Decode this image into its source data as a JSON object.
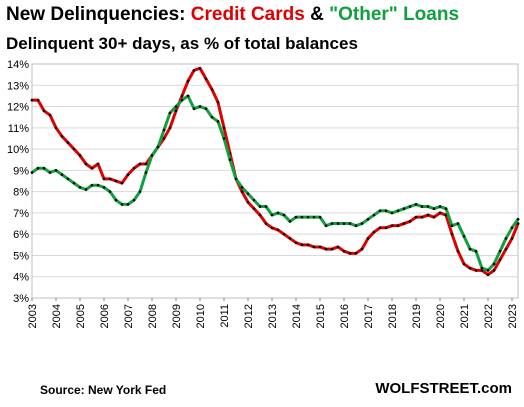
{
  "header": {
    "title_prefix": "New Delinquencies:",
    "title_series1": "Credit Cards",
    "title_amp": "&",
    "title_series2": "\"Other\" Loans",
    "subtitle": "Delinquent 30+ days, as % of total balances"
  },
  "footer": {
    "source": "Source: New York Fed",
    "brand": "WOLFSTREET.com"
  },
  "colors": {
    "credit_cards": "#e00000",
    "other_loans": "#10a040",
    "grid": "#d9d9d9",
    "dots": "#000000"
  },
  "chart_data": {
    "type": "line",
    "title": "New Delinquencies: Credit Cards & \"Other\" Loans",
    "subtitle": "Delinquent 30+ days, as % of total balances",
    "xlim": [
      2003,
      2023.25
    ],
    "ylim": [
      3,
      14
    ],
    "y_ticks": [
      "3%",
      "4%",
      "5%",
      "6%",
      "7%",
      "8%",
      "9%",
      "10%",
      "11%",
      "12%",
      "13%",
      "14%"
    ],
    "x_ticks": [
      "2003",
      "2004",
      "2005",
      "2006",
      "2007",
      "2008",
      "2009",
      "2010",
      "2011",
      "2012",
      "2013",
      "2014",
      "2015",
      "2016",
      "2017",
      "2018",
      "2019",
      "2020",
      "2021",
      "2022",
      "2023"
    ],
    "grid": true,
    "frequency": "quarterly",
    "series": [
      {
        "name": "Credit Cards",
        "color": "#e00000",
        "values": [
          12.3,
          12.3,
          11.8,
          11.6,
          11.0,
          10.6,
          10.3,
          10.0,
          9.7,
          9.3,
          9.1,
          9.3,
          8.6,
          8.6,
          8.5,
          8.4,
          8.8,
          9.1,
          9.3,
          9.3,
          9.7,
          10.1,
          10.5,
          11.0,
          11.8,
          12.5,
          13.2,
          13.7,
          13.8,
          13.3,
          12.8,
          12.2,
          11.0,
          9.8,
          8.6,
          8.0,
          7.5,
          7.2,
          6.9,
          6.5,
          6.3,
          6.2,
          6.0,
          5.8,
          5.6,
          5.5,
          5.5,
          5.4,
          5.4,
          5.3,
          5.3,
          5.4,
          5.2,
          5.1,
          5.1,
          5.3,
          5.8,
          6.1,
          6.3,
          6.3,
          6.4,
          6.4,
          6.5,
          6.6,
          6.8,
          6.8,
          6.9,
          6.8,
          7.0,
          6.9,
          6.0,
          5.2,
          4.6,
          4.4,
          4.3,
          4.3,
          4.1,
          4.3,
          4.8,
          5.3,
          5.8,
          6.5
        ]
      },
      {
        "name": "\"Other\" Loans",
        "color": "#10a040",
        "values": [
          8.9,
          9.1,
          9.1,
          8.9,
          9.0,
          8.8,
          8.6,
          8.4,
          8.2,
          8.1,
          8.3,
          8.3,
          8.2,
          8.0,
          7.6,
          7.4,
          7.4,
          7.6,
          8.0,
          8.9,
          9.7,
          10.1,
          10.9,
          11.7,
          12.0,
          12.3,
          12.5,
          11.9,
          12.0,
          11.9,
          11.5,
          11.3,
          10.5,
          9.5,
          8.6,
          8.2,
          7.9,
          7.6,
          7.3,
          7.3,
          6.9,
          7.0,
          6.9,
          6.6,
          6.8,
          6.8,
          6.8,
          6.8,
          6.8,
          6.4,
          6.5,
          6.5,
          6.5,
          6.5,
          6.4,
          6.5,
          6.7,
          6.9,
          7.1,
          7.1,
          7.0,
          7.1,
          7.2,
          7.3,
          7.4,
          7.3,
          7.3,
          7.2,
          7.3,
          7.2,
          6.4,
          6.5,
          5.9,
          5.3,
          5.2,
          4.4,
          4.3,
          4.6,
          5.2,
          5.8,
          6.3,
          6.7
        ]
      }
    ]
  }
}
